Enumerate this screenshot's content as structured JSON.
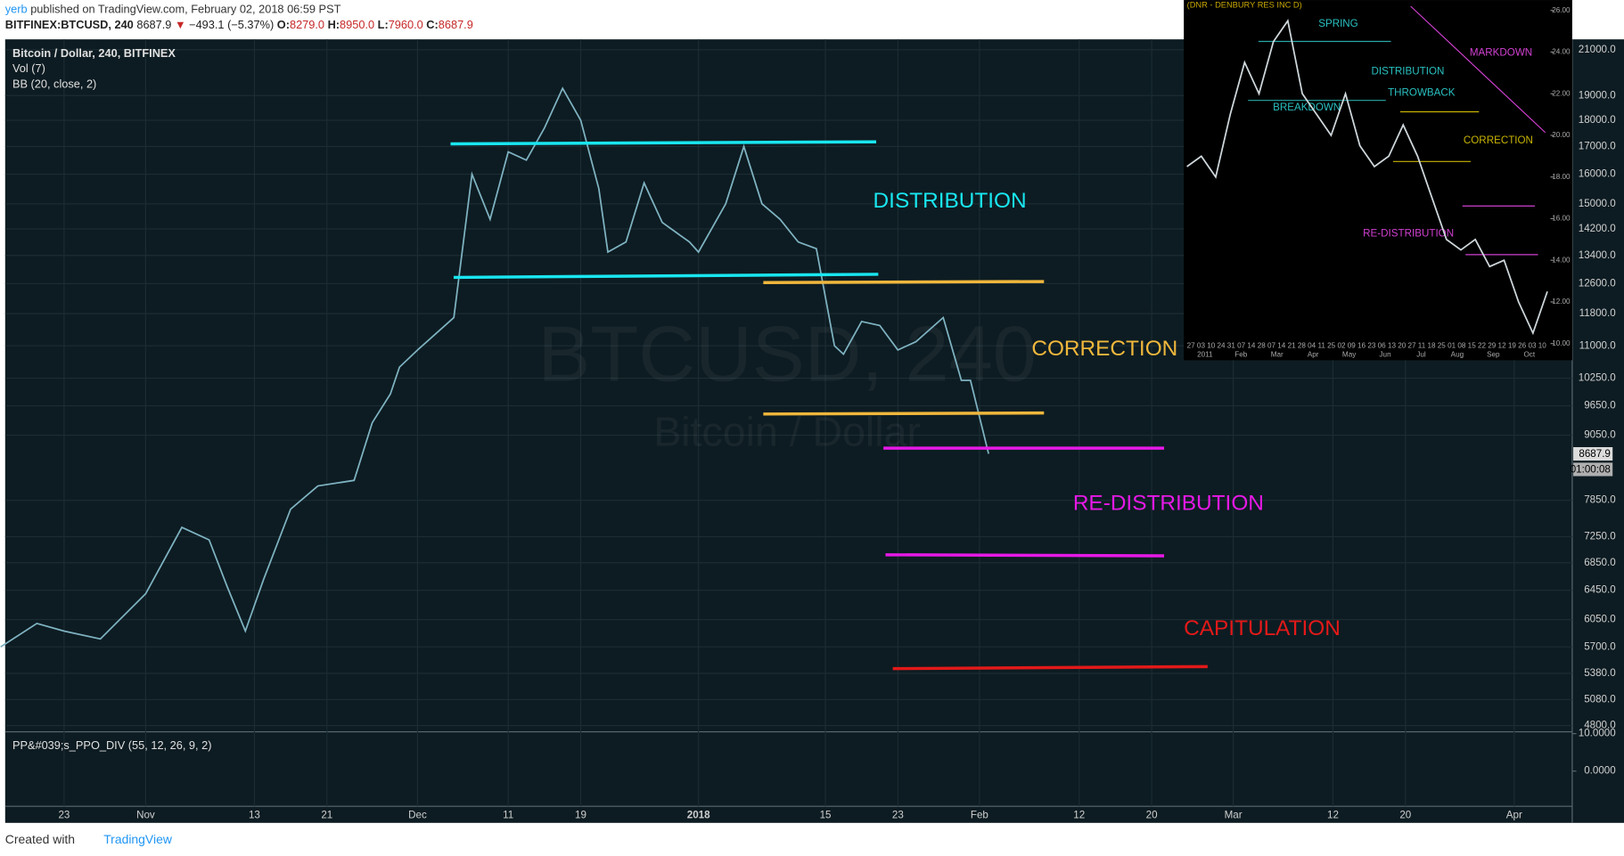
{
  "header": {
    "author": "yerb",
    "published": "published on TradingView.com, February 02, 2018 06:59 PST",
    "symbol": "BITFINEX:BTCUSD, 240",
    "last": "8687.9",
    "arrow": "▼",
    "change": "−493.1 (−5.37%)",
    "o_label": "O:",
    "o": "8279.0",
    "h_label": "H:",
    "h": "8950.0",
    "l_label": "L:",
    "l": "7960.0",
    "c_label": "C:",
    "c": "8687.9"
  },
  "chart_data": {
    "type": "line",
    "color": "#7fb3c2",
    "log_scale": true,
    "legend": [
      "Bitcoin / Dollar, 240, BITFINEX",
      "Vol (7)",
      "BB (20, close, 2)"
    ],
    "watermark": "BTCUSD, 240",
    "watermark_sub": "Bitcoin / Dollar",
    "x": [
      15,
      19,
      22,
      26,
      31,
      35,
      38,
      40,
      42,
      44,
      47,
      50,
      54,
      56,
      58,
      59,
      61,
      65,
      67,
      69,
      71,
      73,
      75,
      77,
      79,
      81,
      82,
      84,
      86,
      88,
      91,
      92,
      95,
      97,
      99,
      101,
      103,
      105,
      107,
      108,
      110,
      112,
      114,
      116,
      119,
      121,
      122,
      124
    ],
    "values": [
      5700,
      6000,
      5900,
      5800,
      6400,
      7400,
      7200,
      6500,
      5900,
      6600,
      7700,
      8100,
      8200,
      9300,
      9900,
      10500,
      10900,
      11700,
      16000,
      14500,
      16800,
      16500,
      17700,
      19300,
      18000,
      15500,
      13500,
      13800,
      15700,
      14400,
      13800,
      13500,
      15000,
      17000,
      15000,
      14500,
      13800,
      13600,
      11000,
      10800,
      11600,
      11500,
      10900,
      11100,
      11700,
      10200,
      10200,
      8690
    ],
    "xlim": [
      15.5,
      188.4
    ],
    "xticks": [
      {
        "value": 22,
        "label": "23"
      },
      {
        "value": 31,
        "label": "Nov"
      },
      {
        "value": 43,
        "label": "13"
      },
      {
        "value": 51,
        "label": "21"
      },
      {
        "value": 61,
        "label": "Dec"
      },
      {
        "value": 71,
        "label": "11"
      },
      {
        "value": 79,
        "label": "19"
      },
      {
        "value": 92,
        "label": "2018"
      },
      {
        "value": 106,
        "label": "15"
      },
      {
        "value": 114,
        "label": "23"
      },
      {
        "value": 123,
        "label": "Feb"
      },
      {
        "value": 134,
        "label": "12"
      },
      {
        "value": 142,
        "label": "20"
      },
      {
        "value": 151,
        "label": "Mar"
      },
      {
        "value": 162,
        "label": "12"
      },
      {
        "value": 170,
        "label": "20"
      },
      {
        "value": 182,
        "label": "Apr"
      }
    ],
    "ylim": [
      4746,
      21480
    ],
    "yticks": [
      {
        "value": 21000,
        "label": "21000.0"
      },
      {
        "value": 19000,
        "label": "19000.0"
      },
      {
        "value": 18000,
        "label": "18000.0"
      },
      {
        "value": 17000,
        "label": "17000.0"
      },
      {
        "value": 16000,
        "label": "16000.0"
      },
      {
        "value": 15000,
        "label": "15000.0"
      },
      {
        "value": 14200,
        "label": "14200.0"
      },
      {
        "value": 13400,
        "label": "13400.0"
      },
      {
        "value": 12600,
        "label": "12600.0"
      },
      {
        "value": 11800,
        "label": "11800.0"
      },
      {
        "value": 11000,
        "label": "11000.0"
      },
      {
        "value": 10250,
        "label": "10250.0"
      },
      {
        "value": 9650,
        "label": "9650.0"
      },
      {
        "value": 9050,
        "label": "9050.0"
      },
      {
        "value": 7850,
        "label": "7850.0"
      },
      {
        "value": 7250,
        "label": "7250.0"
      },
      {
        "value": 6850,
        "label": "6850.0"
      },
      {
        "value": 6450,
        "label": "6450.0"
      },
      {
        "value": 6050,
        "label": "6050.0"
      },
      {
        "value": 5700,
        "label": "5700.0"
      },
      {
        "value": 5380,
        "label": "5380.0"
      },
      {
        "value": 5080,
        "label": "5080.0"
      },
      {
        "value": 4800,
        "label": "4800.0"
      }
    ],
    "price_tag": "8687.9",
    "countdown": "01:00:08",
    "ppo": {
      "label": "PP&#039;s_PPO_DIV (55, 12, 26, 9, 2)",
      "ylim": [
        -9.4,
        10.5
      ],
      "yticks": [
        {
          "value": 10,
          "label": "10.0000"
        },
        {
          "value": 0,
          "label": "0.0000"
        }
      ]
    }
  },
  "annotations": [
    "DISTRIBUTION",
    "CORRECTION",
    "RE-DISTRIBUTION",
    "CAPITULATION"
  ],
  "inset": {
    "title": "(DNR - DENBURY RES INC D)",
    "labels": [
      "SPRING",
      "DISTRIBUTION",
      "THROWBACK",
      "BREAKDOWN",
      "MARKDOWN",
      "CORRECTION",
      "RE-DISTRIBUTION"
    ],
    "values": [
      18.5,
      19,
      18,
      21,
      23.5,
      22,
      24.5,
      25.5,
      22,
      21,
      20,
      22,
      19.5,
      18.5,
      19,
      20.5,
      19,
      17,
      15,
      14.5,
      15,
      13.7,
      14,
      12,
      10.5,
      12.5
    ],
    "ylim": [
      9.2,
      26.5
    ],
    "yticks": [
      {
        "value": 26,
        "label": "26.00"
      },
      {
        "value": 24,
        "label": "24.00"
      },
      {
        "value": 22,
        "label": "22.00"
      },
      {
        "value": 20,
        "label": "20.00"
      },
      {
        "value": 18,
        "label": "18.00"
      },
      {
        "value": 16,
        "label": "16.00"
      },
      {
        "value": 14,
        "label": "14.00"
      },
      {
        "value": 12,
        "label": "12.00"
      },
      {
        "value": 10,
        "label": "10.00"
      }
    ],
    "day_row": "27 03 10  24 31 07 14  28 07 14 21 28 04 11  25 02 09 16 23  06 13 20 27  11 18 25 01 08 15 22 29  12 19 26 03 10",
    "months": [
      "2011",
      "Feb",
      "Mar",
      "Apr",
      "May",
      "Jun",
      "Jul",
      "Aug",
      "Sep",
      "Oct"
    ]
  },
  "footer": {
    "created": "Created with",
    "brand": "TradingView"
  }
}
